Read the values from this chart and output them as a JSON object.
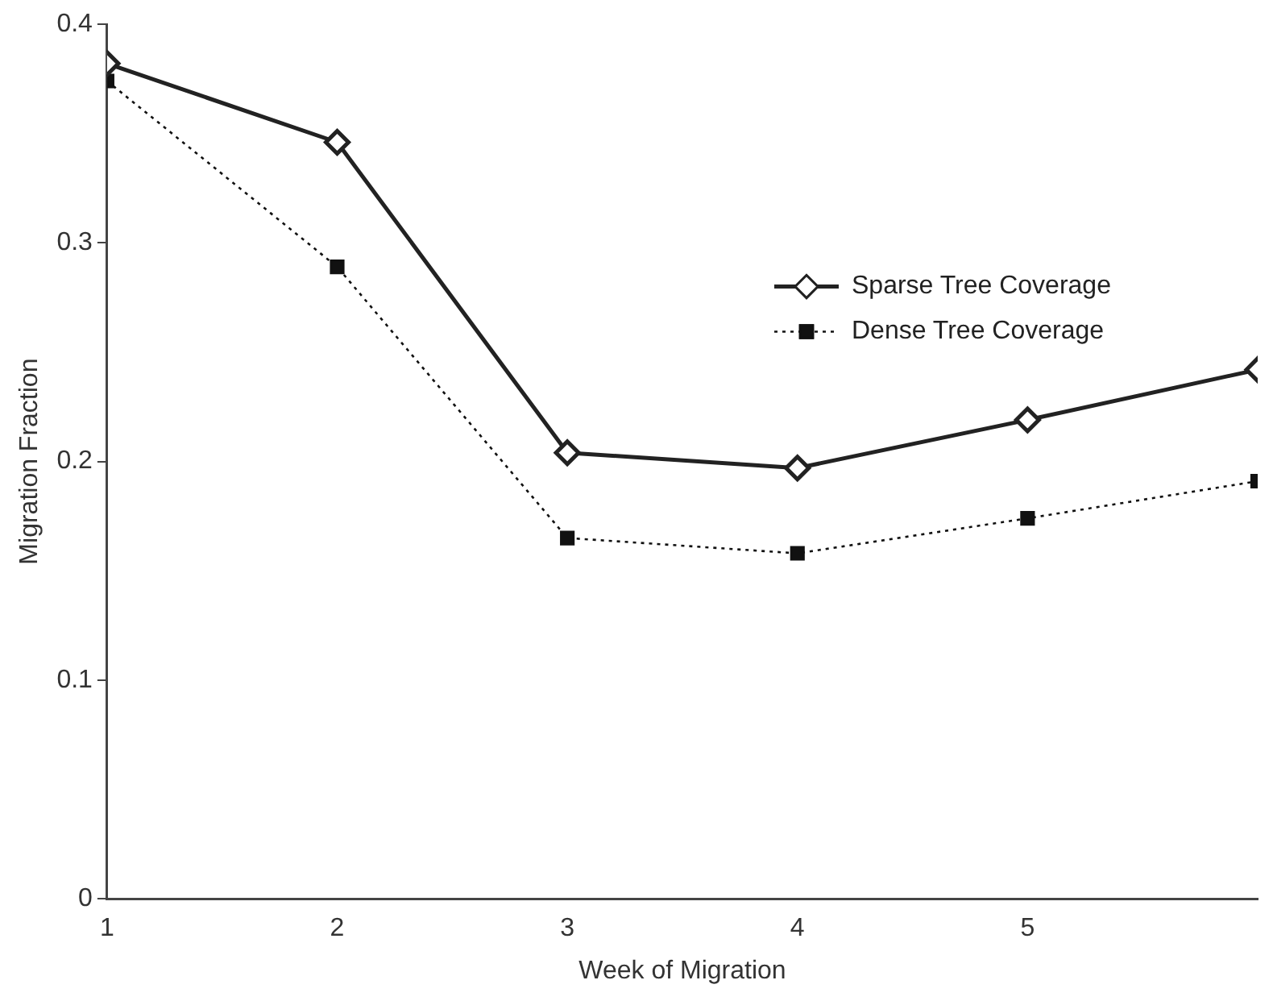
{
  "chart_data": {
    "type": "line",
    "xlabel": "Week of Migration",
    "ylabel": "Migration Fraction",
    "x": [
      1,
      2,
      3,
      4,
      5,
      6
    ],
    "xlim": [
      1,
      6
    ],
    "xticks": [
      1,
      2,
      3,
      4,
      5
    ],
    "ylim": [
      0,
      0.4
    ],
    "yticks": [
      0,
      0.1,
      0.2,
      0.3,
      0.4
    ],
    "grid": false,
    "legend": "right",
    "series": [
      {
        "name": "Sparse Tree Coverage",
        "color": "#222222",
        "marker": "diamond",
        "line_style": "solid",
        "values": [
          0.382,
          0.346,
          0.204,
          0.197,
          0.219,
          0.242
        ]
      },
      {
        "name": "Dense Tree Coverage",
        "color": "#111111",
        "marker": "square",
        "line_style": "dotted",
        "values": [
          0.374,
          0.289,
          0.165,
          0.158,
          0.174,
          0.191
        ]
      }
    ]
  }
}
